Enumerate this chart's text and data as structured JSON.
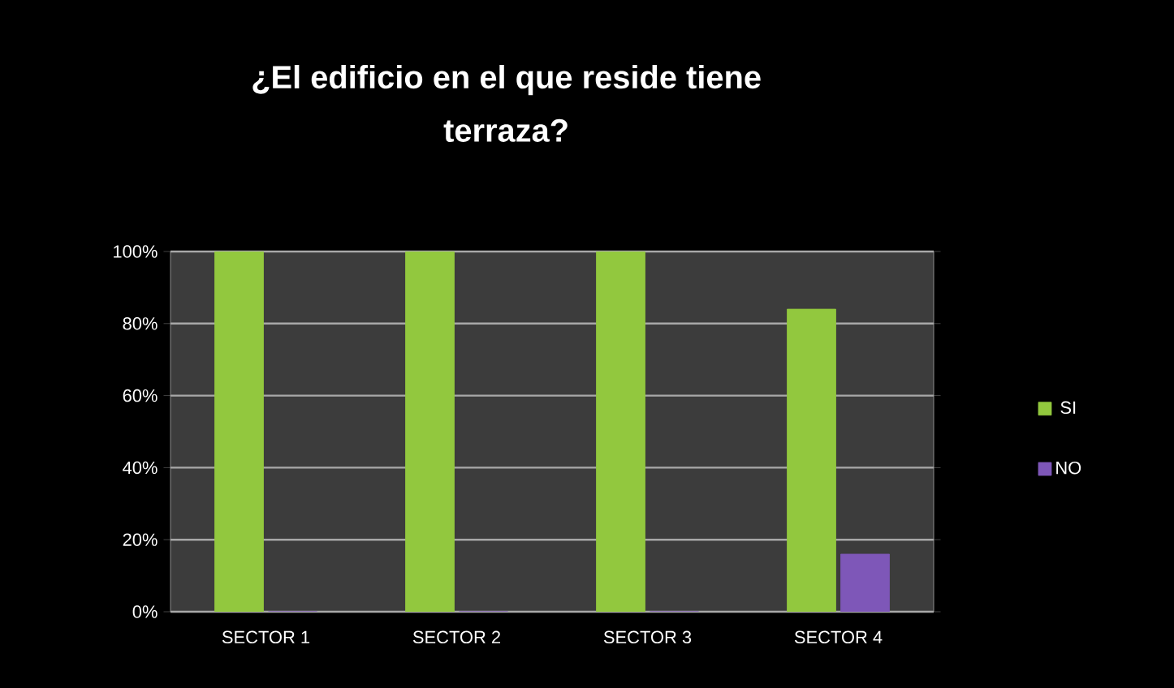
{
  "chart_data": {
    "type": "bar",
    "title": "¿El edificio en el que reside tiene terraza?",
    "categories": [
      "SECTOR 1",
      "SECTOR 2",
      "SECTOR 3",
      "SECTOR 4"
    ],
    "series": [
      {
        "name": "SI",
        "color": "#92c83e",
        "values": [
          100,
          100,
          100,
          84
        ]
      },
      {
        "name": "NO",
        "color": "#7e57b8",
        "values": [
          0,
          0,
          0,
          16
        ]
      }
    ],
    "ylim": [
      0,
      100
    ],
    "yticks": [
      {
        "value": 0,
        "label": "0%"
      },
      {
        "value": 20,
        "label": "20%"
      },
      {
        "value": 40,
        "label": "40%"
      },
      {
        "value": 60,
        "label": "60%"
      },
      {
        "value": 80,
        "label": "80%"
      },
      {
        "value": 100,
        "label": "100%"
      }
    ],
    "grid": "y",
    "legend": "right"
  }
}
